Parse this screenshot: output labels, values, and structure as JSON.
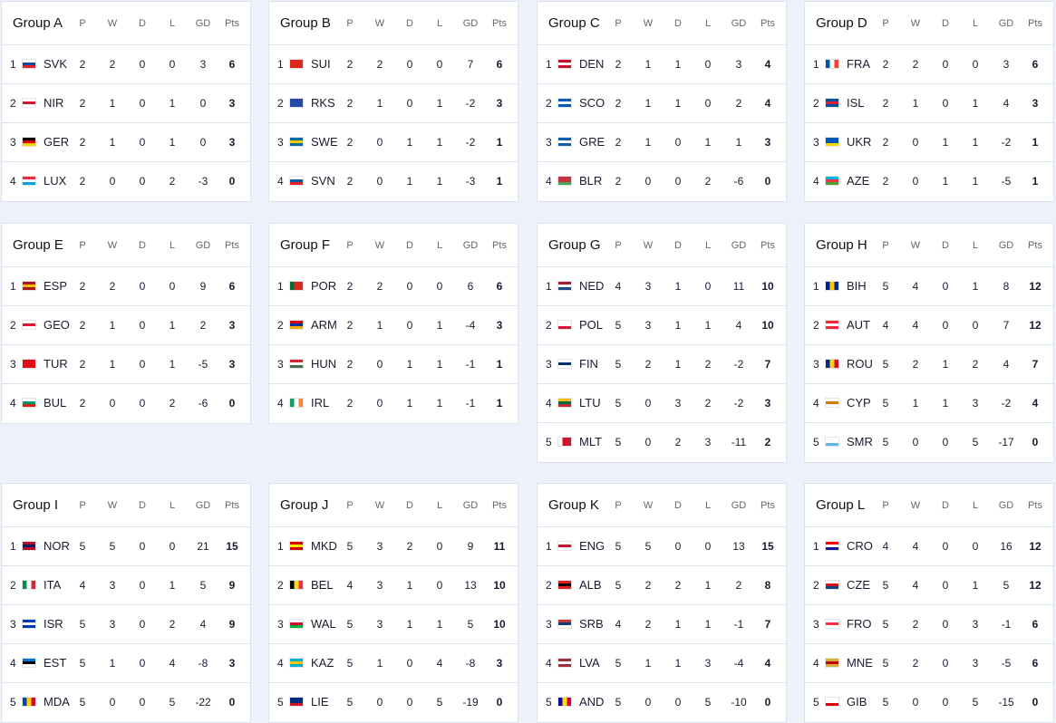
{
  "columns": [
    "P",
    "W",
    "D",
    "L",
    "GD",
    "Pts"
  ],
  "groups": [
    {
      "name": "Group A",
      "teams": [
        {
          "rank": 1,
          "code": "SVK",
          "flag": [
            "#ffffff",
            "#0b4ea2",
            "#ee1c25"
          ],
          "stats": [
            2,
            2,
            0,
            0,
            3,
            6
          ]
        },
        {
          "rank": 2,
          "code": "NIR",
          "flag": [
            "#ffffff",
            "#cf142b",
            "#ffffff"
          ],
          "stats": [
            2,
            1,
            0,
            1,
            0,
            3
          ]
        },
        {
          "rank": 3,
          "code": "GER",
          "flag": [
            "#000000",
            "#dd0000",
            "#ffce00"
          ],
          "stats": [
            2,
            1,
            0,
            1,
            0,
            3
          ]
        },
        {
          "rank": 4,
          "code": "LUX",
          "flag": [
            "#ed2939",
            "#ffffff",
            "#00a1de"
          ],
          "stats": [
            2,
            0,
            0,
            2,
            -3,
            0
          ]
        }
      ]
    },
    {
      "name": "Group B",
      "teams": [
        {
          "rank": 1,
          "code": "SUI",
          "flag": [
            "#da291c",
            "#da291c",
            "#da291c"
          ],
          "stats": [
            2,
            2,
            0,
            0,
            7,
            6
          ]
        },
        {
          "rank": 2,
          "code": "RKS",
          "flag": [
            "#244aa5",
            "#244aa5",
            "#244aa5"
          ],
          "stats": [
            2,
            1,
            0,
            1,
            -2,
            3
          ]
        },
        {
          "rank": 3,
          "code": "SWE",
          "flag": [
            "#006aa7",
            "#fecc00",
            "#006aa7"
          ],
          "stats": [
            2,
            0,
            1,
            1,
            -2,
            1
          ]
        },
        {
          "rank": 4,
          "code": "SVN",
          "flag": [
            "#ffffff",
            "#005da4",
            "#ed1c24"
          ],
          "stats": [
            2,
            0,
            1,
            1,
            -3,
            1
          ]
        }
      ]
    },
    {
      "name": "Group C",
      "teams": [
        {
          "rank": 1,
          "code": "DEN",
          "flag": [
            "#c8102e",
            "#ffffff",
            "#c8102e"
          ],
          "stats": [
            2,
            1,
            1,
            0,
            3,
            4
          ]
        },
        {
          "rank": 2,
          "code": "SCO",
          "flag": [
            "#005eb8",
            "#ffffff",
            "#005eb8"
          ],
          "stats": [
            2,
            1,
            1,
            0,
            2,
            4
          ]
        },
        {
          "rank": 3,
          "code": "GRE",
          "flag": [
            "#0d5eaf",
            "#ffffff",
            "#0d5eaf"
          ],
          "stats": [
            2,
            1,
            0,
            1,
            1,
            3
          ]
        },
        {
          "rank": 4,
          "code": "BLR",
          "flag": [
            "#c8313e",
            "#c8313e",
            "#4aa657"
          ],
          "stats": [
            2,
            0,
            0,
            2,
            -6,
            0
          ]
        }
      ]
    },
    {
      "name": "Group D",
      "teams": [
        {
          "rank": 1,
          "code": "FRA",
          "flag": [
            "#0055a4",
            "#ffffff",
            "#ef4135"
          ],
          "dir": "v",
          "stats": [
            2,
            2,
            0,
            0,
            3,
            6
          ]
        },
        {
          "rank": 2,
          "code": "ISL",
          "flag": [
            "#02529c",
            "#dc1e35",
            "#02529c"
          ],
          "stats": [
            2,
            1,
            0,
            1,
            4,
            3
          ]
        },
        {
          "rank": 3,
          "code": "UKR",
          "flag": [
            "#0057b7",
            "#0057b7",
            "#ffd700"
          ],
          "stats": [
            2,
            0,
            1,
            1,
            -2,
            1
          ]
        },
        {
          "rank": 4,
          "code": "AZE",
          "flag": [
            "#00b5e2",
            "#ef3340",
            "#509e2f"
          ],
          "stats": [
            2,
            0,
            1,
            1,
            -5,
            1
          ]
        }
      ]
    },
    {
      "name": "Group E",
      "teams": [
        {
          "rank": 1,
          "code": "ESP",
          "flag": [
            "#aa151b",
            "#f1bf00",
            "#aa151b"
          ],
          "stats": [
            2,
            2,
            0,
            0,
            9,
            6
          ]
        },
        {
          "rank": 2,
          "code": "GEO",
          "flag": [
            "#ffffff",
            "#e8112d",
            "#ffffff"
          ],
          "stats": [
            2,
            1,
            0,
            1,
            2,
            3
          ]
        },
        {
          "rank": 3,
          "code": "TUR",
          "flag": [
            "#e30a17",
            "#e30a17",
            "#e30a17"
          ],
          "stats": [
            2,
            1,
            0,
            1,
            -5,
            3
          ]
        },
        {
          "rank": 4,
          "code": "BUL",
          "flag": [
            "#ffffff",
            "#00966e",
            "#d62612"
          ],
          "stats": [
            2,
            0,
            0,
            2,
            -6,
            0
          ]
        }
      ]
    },
    {
      "name": "Group F",
      "teams": [
        {
          "rank": 1,
          "code": "POR",
          "flag": [
            "#046a38",
            "#da291c",
            "#da291c"
          ],
          "dir": "v",
          "stats": [
            2,
            2,
            0,
            0,
            6,
            6
          ]
        },
        {
          "rank": 2,
          "code": "ARM",
          "flag": [
            "#d90012",
            "#0033a0",
            "#f2a800"
          ],
          "stats": [
            2,
            1,
            0,
            1,
            -4,
            3
          ]
        },
        {
          "rank": 3,
          "code": "HUN",
          "flag": [
            "#ce2939",
            "#ffffff",
            "#477050"
          ],
          "stats": [
            2,
            0,
            1,
            1,
            -1,
            1
          ]
        },
        {
          "rank": 4,
          "code": "IRL",
          "flag": [
            "#169b62",
            "#ffffff",
            "#ff883e"
          ],
          "dir": "v",
          "stats": [
            2,
            0,
            1,
            1,
            -1,
            1
          ]
        }
      ]
    },
    {
      "name": "Group G",
      "teams": [
        {
          "rank": 1,
          "code": "NED",
          "flag": [
            "#ae1c28",
            "#ffffff",
            "#21468b"
          ],
          "stats": [
            4,
            3,
            1,
            0,
            11,
            10
          ]
        },
        {
          "rank": 2,
          "code": "POL",
          "flag": [
            "#ffffff",
            "#ffffff",
            "#dc143c"
          ],
          "stats": [
            5,
            3,
            1,
            1,
            4,
            10
          ]
        },
        {
          "rank": 3,
          "code": "FIN",
          "flag": [
            "#ffffff",
            "#002f6c",
            "#ffffff"
          ],
          "stats": [
            5,
            2,
            1,
            2,
            -2,
            7
          ]
        },
        {
          "rank": 4,
          "code": "LTU",
          "flag": [
            "#fdb913",
            "#006a44",
            "#c1272d"
          ],
          "stats": [
            5,
            0,
            3,
            2,
            -2,
            3
          ]
        },
        {
          "rank": 5,
          "code": "MLT",
          "flag": [
            "#ffffff",
            "#cf142b",
            "#cf142b"
          ],
          "dir": "v",
          "stats": [
            5,
            0,
            2,
            3,
            -11,
            2
          ]
        }
      ]
    },
    {
      "name": "Group H",
      "teams": [
        {
          "rank": 1,
          "code": "BIH",
          "flag": [
            "#002395",
            "#fecb00",
            "#002395"
          ],
          "dir": "v",
          "stats": [
            5,
            4,
            0,
            1,
            8,
            12
          ]
        },
        {
          "rank": 2,
          "code": "AUT",
          "flag": [
            "#ed2939",
            "#ffffff",
            "#ed2939"
          ],
          "stats": [
            4,
            4,
            0,
            0,
            7,
            12
          ]
        },
        {
          "rank": 3,
          "code": "ROU",
          "flag": [
            "#002b7f",
            "#fcd116",
            "#ce1126"
          ],
          "dir": "v",
          "stats": [
            5,
            2,
            1,
            2,
            4,
            7
          ]
        },
        {
          "rank": 4,
          "code": "CYP",
          "flag": [
            "#ffffff",
            "#d57800",
            "#ffffff"
          ],
          "stats": [
            5,
            1,
            1,
            3,
            -2,
            4
          ]
        },
        {
          "rank": 5,
          "code": "SMR",
          "flag": [
            "#ffffff",
            "#ffffff",
            "#5eb6e4"
          ],
          "stats": [
            5,
            0,
            0,
            5,
            -17,
            0
          ]
        }
      ]
    },
    {
      "name": "Group I",
      "teams": [
        {
          "rank": 1,
          "code": "NOR",
          "flag": [
            "#ba0c2f",
            "#00205b",
            "#ba0c2f"
          ],
          "stats": [
            5,
            5,
            0,
            0,
            21,
            15
          ]
        },
        {
          "rank": 2,
          "code": "ITA",
          "flag": [
            "#009246",
            "#ffffff",
            "#ce2b37"
          ],
          "dir": "v",
          "stats": [
            4,
            3,
            0,
            1,
            5,
            9
          ]
        },
        {
          "rank": 3,
          "code": "ISR",
          "flag": [
            "#0038b8",
            "#ffffff",
            "#0038b8"
          ],
          "stats": [
            5,
            3,
            0,
            2,
            4,
            9
          ]
        },
        {
          "rank": 4,
          "code": "EST",
          "flag": [
            "#0072ce",
            "#000000",
            "#ffffff"
          ],
          "stats": [
            5,
            1,
            0,
            4,
            -8,
            3
          ]
        },
        {
          "rank": 5,
          "code": "MDA",
          "flag": [
            "#0046ae",
            "#ffd200",
            "#cc092f"
          ],
          "dir": "v",
          "stats": [
            5,
            0,
            0,
            5,
            -22,
            0
          ]
        }
      ]
    },
    {
      "name": "Group J",
      "teams": [
        {
          "rank": 1,
          "code": "MKD",
          "flag": [
            "#d20000",
            "#ffe600",
            "#d20000"
          ],
          "stats": [
            5,
            3,
            2,
            0,
            9,
            11
          ]
        },
        {
          "rank": 2,
          "code": "BEL",
          "flag": [
            "#000000",
            "#fdda24",
            "#ef3340"
          ],
          "dir": "v",
          "stats": [
            4,
            3,
            1,
            0,
            13,
            10
          ]
        },
        {
          "rank": 3,
          "code": "WAL",
          "flag": [
            "#ffffff",
            "#c8102e",
            "#00b140"
          ],
          "stats": [
            5,
            3,
            1,
            1,
            5,
            10
          ]
        },
        {
          "rank": 4,
          "code": "KAZ",
          "flag": [
            "#00afca",
            "#fec50c",
            "#00afca"
          ],
          "stats": [
            5,
            1,
            0,
            4,
            -8,
            3
          ]
        },
        {
          "rank": 5,
          "code": "LIE",
          "flag": [
            "#002b7f",
            "#002b7f",
            "#ce1126"
          ],
          "stats": [
            5,
            0,
            0,
            5,
            -19,
            0
          ]
        }
      ]
    },
    {
      "name": "Group K",
      "teams": [
        {
          "rank": 1,
          "code": "ENG",
          "flag": [
            "#ffffff",
            "#ce1124",
            "#ffffff"
          ],
          "stats": [
            5,
            5,
            0,
            0,
            13,
            15
          ]
        },
        {
          "rank": 2,
          "code": "ALB",
          "flag": [
            "#e41e20",
            "#000000",
            "#e41e20"
          ],
          "stats": [
            5,
            2,
            2,
            1,
            2,
            8
          ]
        },
        {
          "rank": 3,
          "code": "SRB",
          "flag": [
            "#c6363c",
            "#0c4076",
            "#ffffff"
          ],
          "stats": [
            4,
            2,
            1,
            1,
            -1,
            7
          ]
        },
        {
          "rank": 4,
          "code": "LVA",
          "flag": [
            "#9e3039",
            "#ffffff",
            "#9e3039"
          ],
          "stats": [
            5,
            1,
            1,
            3,
            -4,
            4
          ]
        },
        {
          "rank": 5,
          "code": "AND",
          "flag": [
            "#10069f",
            "#fedf00",
            "#d50032"
          ],
          "dir": "v",
          "stats": [
            5,
            0,
            0,
            5,
            -10,
            0
          ]
        }
      ]
    },
    {
      "name": "Group L",
      "teams": [
        {
          "rank": 1,
          "code": "CRO",
          "flag": [
            "#ff0000",
            "#ffffff",
            "#171796"
          ],
          "stats": [
            4,
            4,
            0,
            0,
            16,
            12
          ]
        },
        {
          "rank": 2,
          "code": "CZE",
          "flag": [
            "#ffffff",
            "#d7141a",
            "#11457e"
          ],
          "stats": [
            5,
            4,
            0,
            1,
            5,
            12
          ]
        },
        {
          "rank": 3,
          "code": "FRO",
          "flag": [
            "#ffffff",
            "#ef303e",
            "#ffffff"
          ],
          "stats": [
            5,
            2,
            0,
            3,
            -1,
            6
          ]
        },
        {
          "rank": 4,
          "code": "MNE",
          "flag": [
            "#d3ae3b",
            "#c40308",
            "#d3ae3b"
          ],
          "stats": [
            5,
            2,
            0,
            3,
            -5,
            6
          ]
        },
        {
          "rank": 5,
          "code": "GIB",
          "flag": [
            "#ffffff",
            "#ffffff",
            "#da000c"
          ],
          "stats": [
            5,
            0,
            0,
            5,
            -15,
            0
          ]
        }
      ]
    }
  ]
}
